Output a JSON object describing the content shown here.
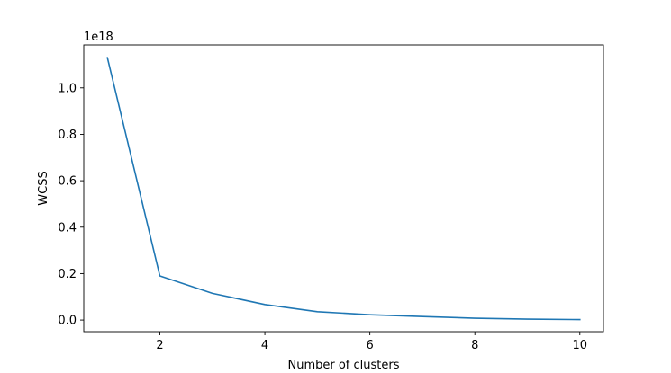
{
  "chart_data": {
    "type": "line",
    "title": "",
    "xlabel": "Number of clusters",
    "ylabel": "WCSS",
    "offset_text": "1e18",
    "x": [
      1,
      2,
      3,
      4,
      5,
      6,
      7,
      8,
      9,
      10
    ],
    "series": [
      {
        "values": [
          1.13,
          0.19,
          0.115,
          0.067,
          0.036,
          0.023,
          0.015,
          0.008,
          0.004,
          0.002
        ],
        "color": "#1f77b4"
      }
    ],
    "xlim": [
      0.55,
      10.45
    ],
    "ylim": [
      -0.05,
      1.185
    ],
    "xticks": [
      2,
      4,
      6,
      8,
      10
    ],
    "xtick_labels": [
      "2",
      "4",
      "6",
      "8",
      "10"
    ],
    "yticks": [
      0.0,
      0.2,
      0.4,
      0.6,
      0.8,
      1.0
    ],
    "ytick_labels": [
      "0.0",
      "0.2",
      "0.4",
      "0.6",
      "0.8",
      "1.0"
    ],
    "grid": false,
    "legend": "none"
  }
}
